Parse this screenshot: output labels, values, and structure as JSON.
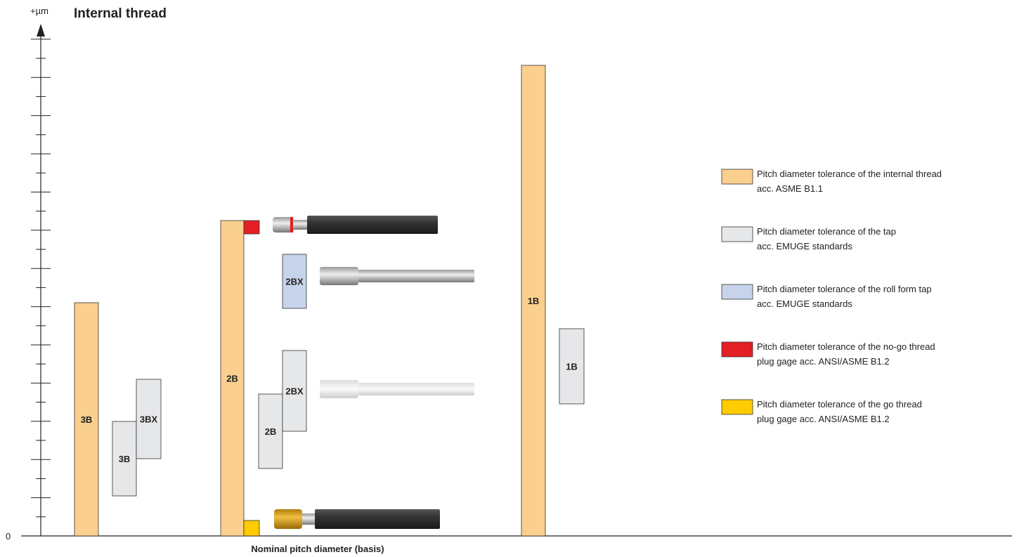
{
  "header": {
    "unit": "+µm",
    "title": "Internal thread"
  },
  "axis": {
    "zero": "0",
    "x_label": "Nominal pitch diameter (basis)"
  },
  "boxes": [
    {
      "label": "3B"
    },
    {
      "label": "3B"
    },
    {
      "label": "3BX"
    },
    {
      "label": "2B"
    },
    {
      "label": null
    },
    {
      "label": null
    },
    {
      "label": "2BX"
    },
    {
      "label": "2B"
    },
    {
      "label": "2BX"
    },
    {
      "label": "1B"
    },
    {
      "label": "1B"
    }
  ],
  "legend": [
    {
      "lines": [
        "Pitch diameter tolerance of the internal thread",
        "acc. ASME B1.1"
      ]
    },
    {
      "lines": [
        "Pitch diameter tolerance of the tap",
        "acc. EMUGE standards"
      ]
    },
    {
      "lines": [
        "Pitch diameter tolerance of the roll form tap",
        "acc. EMUGE standards"
      ]
    },
    {
      "lines": [
        "Pitch diameter tolerance of the no-go thread",
        "plug gage acc. ANSI/ASME B1.2"
      ]
    },
    {
      "lines": [
        "Pitch diameter tolerance of the go thread",
        "plug gage acc. ANSI/ASME B1.2"
      ]
    }
  ]
}
